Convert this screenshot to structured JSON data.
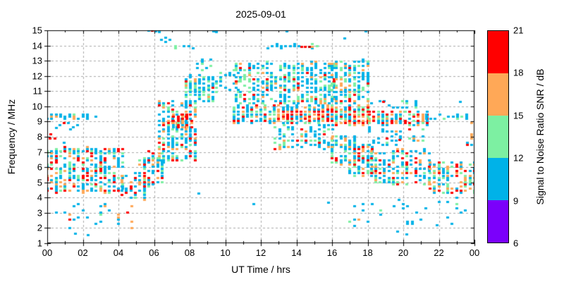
{
  "title": "2025-09-01",
  "x_axis": {
    "label": "UT Time / hrs",
    "range": [
      0,
      24
    ],
    "major_ticks": [
      0,
      2,
      4,
      6,
      8,
      10,
      12,
      14,
      16,
      18,
      20,
      22,
      24
    ],
    "tick_labels": [
      "00",
      "02",
      "04",
      "06",
      "08",
      "10",
      "12",
      "14",
      "16",
      "18",
      "20",
      "22",
      "00"
    ],
    "minor_step": 1,
    "grid": "dashed gray every 2 hrs"
  },
  "y_axis": {
    "label": "Frequency / MHz",
    "range": [
      1,
      15
    ],
    "major_ticks": [
      1,
      2,
      3,
      4,
      5,
      6,
      7,
      8,
      9,
      10,
      11,
      12,
      13,
      14,
      15
    ],
    "tick_labels": [
      "1",
      "2",
      "3",
      "4",
      "5",
      "6",
      "7",
      "8",
      "9",
      "10",
      "11",
      "12",
      "13",
      "14",
      "15"
    ],
    "grid": "dashed gray every 1 MHz"
  },
  "colorbar": {
    "label": "Signal to Noise Ratio SNR / dB",
    "range": [
      6,
      21
    ],
    "tick_labels": [
      "6",
      "9",
      "12",
      "15",
      "18",
      "21"
    ],
    "segments_bottom_to_top": [
      {
        "from": 6,
        "to": 9,
        "color": "#7B00FB",
        "name": "purple"
      },
      {
        "from": 9,
        "to": 12,
        "color": "#00B2E8",
        "name": "blue"
      },
      {
        "from": 12,
        "to": 15,
        "color": "#7DF0A2",
        "name": "green"
      },
      {
        "from": 15,
        "to": 18,
        "color": "#FFA857",
        "name": "orange"
      },
      {
        "from": 18,
        "to": 21,
        "color": "#FF0000",
        "name": "red"
      }
    ]
  },
  "palette": {
    "purple": "#7B00FB",
    "blue": "#00B2E8",
    "green": "#7DF0A2",
    "orange": "#FFA857",
    "red": "#FF0000",
    "darkred": "#C00000"
  },
  "grid_color": "#A9A9A9",
  "chart_data": {
    "type": "scatter",
    "style": "SNR-colored spot plot, 4x3 px cells, x snapped to 0.25 hr columns",
    "xlabel": "UT Time / hrs",
    "ylabel": "Frequency / MHz",
    "xlim": [
      0,
      24
    ],
    "ylim": [
      1,
      15
    ],
    "legend_position": "right colorbar",
    "clusters": [
      {
        "name": "beacon-9.3-early",
        "t": [
          0.0,
          2.7
        ],
        "f": [
          9.2,
          9.5
        ],
        "n": 42,
        "w": {
          "blue": 0.72,
          "green": 0.14,
          "orange": 0.14
        }
      },
      {
        "name": "night-low-band",
        "t": [
          0.0,
          4.3
        ],
        "f": [
          4.3,
          7.3
        ],
        "n": 310,
        "w": {
          "blue": 0.44,
          "green": 0.22,
          "orange": 0.16,
          "red": 0.18
        }
      },
      {
        "name": "40m-line",
        "t": [
          0.0,
          3.6
        ],
        "f": [
          6.9,
          7.15
        ],
        "n": 26,
        "w": {
          "blue": 0.85,
          "green": 0.08,
          "orange": 0.07
        }
      },
      {
        "name": "night-verylow",
        "t": [
          0.5,
          4.7
        ],
        "f": [
          1.9,
          3.7
        ],
        "n": 30,
        "w": {
          "blue": 0.66,
          "green": 0.12,
          "orange": 0.12,
          "red": 0.1
        }
      },
      {
        "name": "early-8-9",
        "t": [
          0.2,
          1.6
        ],
        "f": [
          7.6,
          9.0
        ],
        "n": 8,
        "w": {
          "blue": 0.8,
          "red": 0.2
        }
      },
      {
        "name": "dawn-rise-1",
        "t": [
          4.2,
          5.4
        ],
        "f": [
          3.9,
          5.7
        ],
        "n": 60,
        "w": {
          "blue": 0.5,
          "green": 0.2,
          "orange": 0.15,
          "red": 0.15
        }
      },
      {
        "name": "dawn-rise-2",
        "t": [
          5.2,
          6.4
        ],
        "f": [
          4.8,
          7.0
        ],
        "n": 80,
        "w": {
          "blue": 0.5,
          "green": 0.22,
          "orange": 0.14,
          "red": 0.14
        }
      },
      {
        "name": "morning-main",
        "t": [
          6.3,
          8.4
        ],
        "f": [
          6.4,
          10.4
        ],
        "n": 250,
        "w": {
          "blue": 0.45,
          "green": 0.22,
          "orange": 0.15,
          "red": 0.18
        }
      },
      {
        "name": "morning-red-core",
        "t": [
          7.1,
          8.1
        ],
        "f": [
          8.6,
          9.5
        ],
        "n": 45,
        "w": {
          "red": 0.6,
          "orange": 0.2,
          "blue": 0.1,
          "green": 0.1
        }
      },
      {
        "name": "morning-high",
        "t": [
          7.8,
          9.4
        ],
        "f": [
          10.3,
          12.2
        ],
        "n": 110,
        "w": {
          "blue": 0.62,
          "green": 0.26,
          "orange": 0.06,
          "red": 0.06
        }
      },
      {
        "name": "prenoon-13",
        "t": [
          8.2,
          9.3
        ],
        "f": [
          12.3,
          13.2
        ],
        "n": 14,
        "w": {
          "blue": 0.7,
          "green": 0.3
        }
      },
      {
        "name": "14mhz-morning-green",
        "t": [
          7.2,
          8.3
        ],
        "f": [
          13.8,
          13.95
        ],
        "n": 8,
        "w": {
          "green": 0.6,
          "blue": 0.4
        }
      },
      {
        "name": "14.4mhz-morning",
        "t": [
          6.4,
          7.0
        ],
        "f": [
          14.2,
          14.5
        ],
        "n": 4,
        "w": {
          "blue": 1
        }
      },
      {
        "name": "gap-sparse",
        "t": [
          9.5,
          10.8
        ],
        "f": [
          10.9,
          12.5
        ],
        "n": 26,
        "w": {
          "blue": 0.72,
          "green": 0.28
        }
      },
      {
        "name": "midday-high-cloud",
        "t": [
          10.6,
          16.0
        ],
        "f": [
          10.2,
          12.9
        ],
        "n": 400,
        "w": {
          "blue": 0.56,
          "green": 0.27,
          "orange": 0.1,
          "red": 0.07
        }
      },
      {
        "name": "midday-9.3-band",
        "t": [
          10.5,
          16.0
        ],
        "f": [
          8.9,
          10.15
        ],
        "n": 290,
        "w": {
          "blue": 0.42,
          "green": 0.2,
          "orange": 0.2,
          "red": 0.18
        }
      },
      {
        "name": "midday-red-streak",
        "t": [
          13.0,
          17.6
        ],
        "f": [
          9.15,
          9.7
        ],
        "n": 90,
        "w": {
          "red": 0.55,
          "orange": 0.25,
          "blue": 0.1,
          "green": 0.1
        }
      },
      {
        "name": "14mhz-midday-band",
        "t": [
          12.4,
          15.4
        ],
        "f": [
          13.85,
          14.05
        ],
        "n": 20,
        "w": {
          "blue": 0.65,
          "green": 0.2,
          "red": 0.15
        }
      },
      {
        "name": "afternoon-8mhz",
        "t": [
          12.8,
          16.0
        ],
        "f": [
          7.2,
          8.8
        ],
        "n": 110,
        "w": {
          "blue": 0.6,
          "green": 0.2,
          "orange": 0.12,
          "red": 0.08
        }
      },
      {
        "name": "late-afternoon-high",
        "t": [
          16.0,
          18.1
        ],
        "f": [
          10.2,
          13.1
        ],
        "n": 190,
        "w": {
          "blue": 0.6,
          "green": 0.2,
          "orange": 0.13,
          "red": 0.07
        }
      },
      {
        "name": "late-afternoon-9.3",
        "t": [
          16.0,
          18.1
        ],
        "f": [
          8.8,
          10.1
        ],
        "n": 150,
        "w": {
          "blue": 0.35,
          "green": 0.18,
          "orange": 0.22,
          "red": 0.25
        }
      },
      {
        "name": "afternoon-low-1",
        "t": [
          16.0,
          17.2
        ],
        "f": [
          6.2,
          8.1
        ],
        "n": 90,
        "w": {
          "blue": 0.5,
          "green": 0.22,
          "orange": 0.14,
          "red": 0.14
        }
      },
      {
        "name": "afternoon-low-2",
        "t": [
          17.0,
          18.2
        ],
        "f": [
          5.4,
          7.5
        ],
        "n": 90,
        "w": {
          "blue": 0.5,
          "green": 0.22,
          "orange": 0.14,
          "red": 0.14
        }
      },
      {
        "name": "evening-9.3-band",
        "t": [
          18.1,
          21.3
        ],
        "f": [
          8.8,
          9.7
        ],
        "n": 140,
        "w": {
          "blue": 0.38,
          "green": 0.17,
          "orange": 0.2,
          "red": 0.25
        }
      },
      {
        "name": "night-9.3-tail",
        "t": [
          21.3,
          23.6
        ],
        "f": [
          9.2,
          9.5
        ],
        "n": 22,
        "w": {
          "blue": 0.85,
          "green": 0.1,
          "red": 0.05
        }
      },
      {
        "name": "evening-mid",
        "t": [
          18.2,
          21.5
        ],
        "f": [
          4.9,
          7.2
        ],
        "n": 170,
        "w": {
          "blue": 0.45,
          "green": 0.2,
          "orange": 0.17,
          "red": 0.18
        }
      },
      {
        "name": "evening-8mhz",
        "t": [
          18.1,
          21.0
        ],
        "f": [
          7.4,
          8.6
        ],
        "n": 45,
        "w": {
          "blue": 0.7,
          "green": 0.15,
          "orange": 0.07,
          "red": 0.08
        }
      },
      {
        "name": "evening-10mhz",
        "t": [
          18.2,
          20.6
        ],
        "f": [
          9.9,
          10.5
        ],
        "n": 16,
        "w": {
          "blue": 0.9,
          "green": 0.1
        }
      },
      {
        "name": "late-night-low",
        "t": [
          21.5,
          24.0
        ],
        "f": [
          4.3,
          6.4
        ],
        "n": 140,
        "w": {
          "blue": 0.36,
          "green": 0.2,
          "orange": 0.22,
          "red": 0.22
        }
      },
      {
        "name": "late-right-edge",
        "t": [
          23.6,
          24.0
        ],
        "f": [
          7.5,
          9.5
        ],
        "n": 12,
        "w": {
          "blue": 0.6,
          "red": 0.2,
          "orange": 0.2
        }
      },
      {
        "name": "evening-verylow",
        "t": [
          17.0,
          23.6
        ],
        "f": [
          2.2,
          4.0
        ],
        "n": 34,
        "w": {
          "blue": 0.78,
          "green": 0.12,
          "orange": 0.1
        }
      }
    ],
    "extra_points": [
      {
        "t": 0.15,
        "f": 7.9,
        "c": "red"
      },
      {
        "t": 0.5,
        "f": 8.6,
        "c": "blue"
      },
      {
        "t": 1.3,
        "f": 8.5,
        "c": "blue"
      },
      {
        "t": 5.7,
        "f": 15.0,
        "c": "blue"
      },
      {
        "t": 5.9,
        "f": 15.0,
        "c": "darkred"
      },
      {
        "t": 6.1,
        "f": 14.95,
        "c": "blue"
      },
      {
        "t": 6.3,
        "f": 14.9,
        "c": "blue"
      },
      {
        "t": 9.35,
        "f": 14.95,
        "c": "blue"
      },
      {
        "t": 9.5,
        "f": 14.9,
        "c": "blue"
      },
      {
        "t": 13.45,
        "f": 14.95,
        "c": "blue"
      },
      {
        "t": 17.9,
        "f": 14.95,
        "c": "blue"
      },
      {
        "t": 16.7,
        "f": 14.5,
        "c": "blue"
      },
      {
        "t": 14.3,
        "f": 13.95,
        "c": "red"
      },
      {
        "t": 14.5,
        "f": 13.95,
        "c": "red"
      },
      {
        "t": 14.75,
        "f": 13.95,
        "c": "darkred"
      },
      {
        "t": 14.9,
        "f": 13.95,
        "c": "orange"
      },
      {
        "t": 18.9,
        "f": 10.3,
        "c": "red"
      },
      {
        "t": 23.2,
        "f": 10.3,
        "c": "blue"
      },
      {
        "t": 19.8,
        "f": 7.8,
        "c": "red"
      },
      {
        "t": 8.5,
        "f": 4.3,
        "c": "blue"
      },
      {
        "t": 11.6,
        "f": 3.6,
        "c": "blue"
      },
      {
        "t": 15.8,
        "f": 3.7,
        "c": "blue"
      },
      {
        "t": 19.7,
        "f": 1.8,
        "c": "blue"
      },
      {
        "t": 20.2,
        "f": 1.6,
        "c": "blue"
      },
      {
        "t": 21.9,
        "f": 2.2,
        "c": "blue"
      },
      {
        "t": 1.6,
        "f": 1.65,
        "c": "blue"
      },
      {
        "t": 2.3,
        "f": 1.55,
        "c": "blue"
      }
    ]
  }
}
